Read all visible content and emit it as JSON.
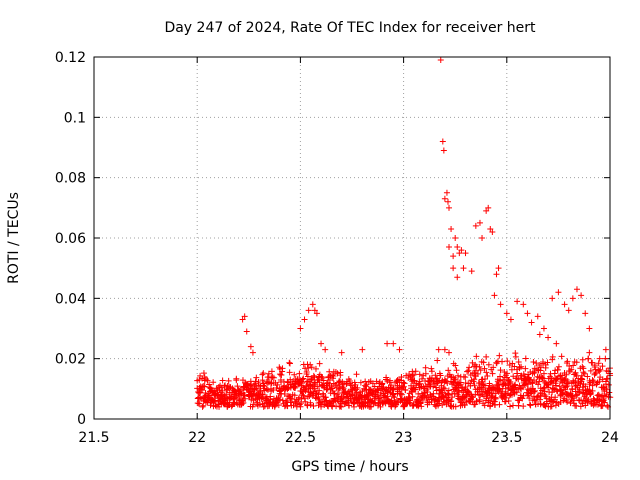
{
  "chart_data": {
    "type": "scatter",
    "title": "Day 247 of 2024, Rate Of TEC Index for receiver hert",
    "xlabel": "GPS time / hours",
    "ylabel": "ROTI / TECUs",
    "xlim": [
      21.5,
      24
    ],
    "ylim": [
      0,
      0.12
    ],
    "xticks": [
      "21.5",
      "22",
      "22.5",
      "23",
      "23.5",
      "24"
    ],
    "yticks": [
      "0",
      "0.02",
      "0.04",
      "0.06",
      "0.08",
      "0.1",
      "0.12"
    ],
    "grid": true,
    "marker": "plus",
    "color": "#ff0000",
    "band_data_range": [
      22.0,
      24.0
    ],
    "series": [
      {
        "points": [
          [
            23.18,
            0.119
          ],
          [
            23.19,
            0.092
          ],
          [
            23.195,
            0.089
          ],
          [
            23.2,
            0.073
          ],
          [
            23.21,
            0.075
          ],
          [
            23.215,
            0.072
          ],
          [
            23.22,
            0.07
          ],
          [
            23.23,
            0.063
          ],
          [
            23.22,
            0.057
          ],
          [
            23.24,
            0.054
          ],
          [
            23.25,
            0.06
          ],
          [
            23.26,
            0.057
          ],
          [
            23.27,
            0.055
          ],
          [
            23.28,
            0.056
          ],
          [
            23.3,
            0.055
          ],
          [
            23.24,
            0.05
          ],
          [
            23.26,
            0.047
          ],
          [
            23.29,
            0.05
          ],
          [
            23.33,
            0.049
          ],
          [
            23.35,
            0.064
          ],
          [
            23.37,
            0.065
          ],
          [
            23.38,
            0.06
          ],
          [
            23.4,
            0.069
          ],
          [
            23.41,
            0.07
          ],
          [
            23.42,
            0.063
          ],
          [
            23.43,
            0.062
          ],
          [
            23.45,
            0.048
          ],
          [
            23.46,
            0.05
          ],
          [
            23.44,
            0.041
          ],
          [
            23.47,
            0.038
          ],
          [
            23.5,
            0.035
          ],
          [
            23.52,
            0.033
          ],
          [
            23.55,
            0.039
          ],
          [
            23.58,
            0.038
          ],
          [
            23.6,
            0.035
          ],
          [
            23.62,
            0.032
          ],
          [
            23.65,
            0.034
          ],
          [
            23.68,
            0.03
          ],
          [
            23.7,
            0.027
          ],
          [
            23.72,
            0.04
          ],
          [
            23.75,
            0.042
          ],
          [
            23.78,
            0.038
          ],
          [
            23.8,
            0.036
          ],
          [
            23.82,
            0.04
          ],
          [
            23.84,
            0.043
          ],
          [
            23.86,
            0.041
          ],
          [
            23.88,
            0.035
          ],
          [
            23.9,
            0.03
          ],
          [
            23.74,
            0.025
          ],
          [
            23.66,
            0.028
          ],
          [
            22.22,
            0.033
          ],
          [
            22.23,
            0.034
          ],
          [
            22.24,
            0.029
          ],
          [
            22.26,
            0.024
          ],
          [
            22.27,
            0.022
          ],
          [
            22.5,
            0.03
          ],
          [
            22.52,
            0.033
          ],
          [
            22.54,
            0.036
          ],
          [
            22.56,
            0.038
          ],
          [
            22.57,
            0.036
          ],
          [
            22.58,
            0.035
          ],
          [
            22.6,
            0.025
          ],
          [
            22.62,
            0.023
          ],
          [
            22.7,
            0.022
          ],
          [
            22.8,
            0.023
          ],
          [
            22.92,
            0.025
          ],
          [
            22.95,
            0.025
          ],
          [
            22.98,
            0.023
          ],
          [
            23.17,
            0.023
          ],
          [
            23.2,
            0.023
          ],
          [
            23.22,
            0.022
          ],
          [
            23.9,
            0.022
          ],
          [
            23.95,
            0.02
          ],
          [
            23.98,
            0.023
          ]
        ]
      }
    ]
  }
}
